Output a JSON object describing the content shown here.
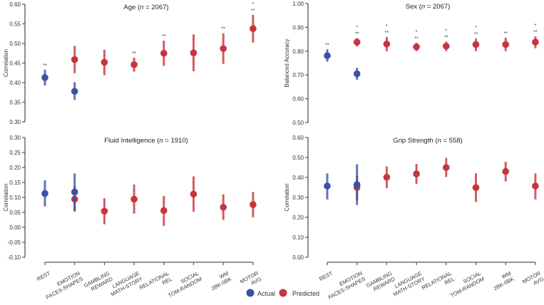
{
  "colors": {
    "actual": "#3953a4",
    "predicted": "#c6353d",
    "axis": "#555555"
  },
  "legend": {
    "actual": "Actual",
    "predicted": "Predicted"
  },
  "categories": [
    [
      "REST"
    ],
    [
      "EMOTION",
      "FACES-SHAPES"
    ],
    [
      "GAMBLING",
      "REWARD"
    ],
    [
      "LANGUAGE",
      "MATH-STORY"
    ],
    [
      "RELATIONAL",
      "REL"
    ],
    [
      "SOCIAL",
      "TOM-RANDOM"
    ],
    [
      "WM",
      "2BK-0BK"
    ],
    [
      "MOTOR",
      "AVG"
    ]
  ],
  "chart_data": [
    {
      "type": "scatter",
      "title_main": "Age (",
      "title_n": "n",
      "title_rest": " = 2067)",
      "ylabel": "Correlation",
      "ylim": [
        0.3,
        0.6
      ],
      "yticks": [
        "0.30",
        "0.35",
        "0.40",
        "0.45",
        "0.50",
        "0.55",
        "0.60"
      ],
      "actual": [
        {
          "cat": 0,
          "value": 0.413,
          "ci": [
            0.393,
            0.433
          ],
          "sig": [
            "**"
          ]
        },
        {
          "cat": 1,
          "value": 0.378,
          "ci": [
            0.356,
            0.401
          ],
          "sig": []
        }
      ],
      "predicted": [
        {
          "cat": 1,
          "value": 0.459,
          "ci": [
            0.424,
            0.494
          ],
          "sig": []
        },
        {
          "cat": 2,
          "value": 0.452,
          "ci": [
            0.419,
            0.484
          ],
          "sig": []
        },
        {
          "cat": 3,
          "value": 0.446,
          "ci": [
            0.428,
            0.464
          ],
          "sig": [
            "**"
          ]
        },
        {
          "cat": 4,
          "value": 0.475,
          "ci": [
            0.443,
            0.507
          ],
          "sig": [
            "**"
          ]
        },
        {
          "cat": 5,
          "value": 0.476,
          "ci": [
            0.429,
            0.523
          ],
          "sig": []
        },
        {
          "cat": 6,
          "value": 0.487,
          "ci": [
            0.448,
            0.526
          ],
          "sig": [
            "**"
          ]
        },
        {
          "cat": 7,
          "value": 0.538,
          "ci": [
            0.502,
            0.573
          ],
          "sig": [
            "*",
            "**"
          ]
        }
      ]
    },
    {
      "type": "scatter",
      "title_main": "Sex (",
      "title_n": "n",
      "title_rest": " = 2067)",
      "ylabel": "Balanced Accuracy",
      "ylim": [
        0.5,
        1.0
      ],
      "yticks": [
        "0.50",
        "0.60",
        "0.70",
        "0.80",
        "0.90",
        "1.00"
      ],
      "actual": [
        {
          "cat": 0,
          "value": 0.781,
          "ci": [
            0.756,
            0.808
          ],
          "sig": [
            "**"
          ]
        },
        {
          "cat": 1,
          "value": 0.705,
          "ci": [
            0.68,
            0.73
          ],
          "sig": []
        }
      ],
      "predicted": [
        {
          "cat": 1,
          "value": 0.838,
          "ci": [
            0.82,
            0.855
          ],
          "sig": [
            "*",
            "**"
          ]
        },
        {
          "cat": 2,
          "value": 0.83,
          "ci": [
            0.8,
            0.86
          ],
          "sig": [
            "*",
            "**"
          ]
        },
        {
          "cat": 3,
          "value": 0.818,
          "ci": [
            0.8,
            0.835
          ],
          "sig": [
            "*",
            "**"
          ]
        },
        {
          "cat": 4,
          "value": 0.821,
          "ci": [
            0.8,
            0.84
          ],
          "sig": [
            "*",
            "**"
          ]
        },
        {
          "cat": 5,
          "value": 0.828,
          "ci": [
            0.8,
            0.853
          ],
          "sig": [
            "*",
            "**"
          ]
        },
        {
          "cat": 6,
          "value": 0.828,
          "ci": [
            0.8,
            0.857
          ],
          "sig": [
            "**"
          ]
        },
        {
          "cat": 7,
          "value": 0.838,
          "ci": [
            0.812,
            0.862
          ],
          "sig": [
            "*",
            "**"
          ]
        }
      ]
    },
    {
      "type": "scatter",
      "title_main": "Fluid Intelligence (",
      "title_n": "n",
      "title_rest": " = 1910)",
      "ylabel": "Correlation",
      "ylim": [
        -0.1,
        0.3
      ],
      "yticks": [
        "-0.10",
        "-0.05",
        "0.00",
        "0.05",
        "0.10",
        "0.15",
        "0.20",
        "0.25",
        "0.30"
      ],
      "actual": [
        {
          "cat": 0,
          "value": 0.113,
          "ci": [
            0.07,
            0.157
          ],
          "sig": []
        },
        {
          "cat": 1,
          "value": 0.118,
          "ci": [
            0.055,
            0.18
          ],
          "sig": []
        }
      ],
      "predicted": [
        {
          "cat": 1,
          "value": 0.094,
          "ci": [
            0.052,
            0.137
          ],
          "sig": []
        },
        {
          "cat": 2,
          "value": 0.054,
          "ci": [
            0.01,
            0.097
          ],
          "sig": []
        },
        {
          "cat": 3,
          "value": 0.094,
          "ci": [
            0.046,
            0.143
          ],
          "sig": []
        },
        {
          "cat": 4,
          "value": 0.056,
          "ci": [
            0.005,
            0.105
          ],
          "sig": []
        },
        {
          "cat": 5,
          "value": 0.111,
          "ci": [
            0.052,
            0.17
          ],
          "sig": []
        },
        {
          "cat": 6,
          "value": 0.067,
          "ci": [
            0.025,
            0.11
          ],
          "sig": []
        },
        {
          "cat": 7,
          "value": 0.076,
          "ci": [
            0.034,
            0.118
          ],
          "sig": []
        }
      ]
    },
    {
      "type": "scatter",
      "title_main": "Grip Strength (",
      "title_n": "n",
      "title_rest": " = 558)",
      "ylabel": "Correlation",
      "ylim": [
        0.0,
        0.6
      ],
      "yticks": [
        "0.00",
        "0.10",
        "0.20",
        "0.30",
        "0.40",
        "0.50",
        "0.60"
      ],
      "actual": [
        {
          "cat": 0,
          "value": 0.357,
          "ci": [
            0.29,
            0.42
          ],
          "sig": []
        },
        {
          "cat": 1,
          "value": 0.364,
          "ci": [
            0.262,
            0.466
          ],
          "sig": []
        }
      ],
      "predicted": [
        {
          "cat": 1,
          "value": 0.35,
          "ci": [
            0.285,
            0.41
          ],
          "sig": []
        },
        {
          "cat": 2,
          "value": 0.401,
          "ci": [
            0.346,
            0.455
          ],
          "sig": []
        },
        {
          "cat": 3,
          "value": 0.418,
          "ci": [
            0.367,
            0.468
          ],
          "sig": []
        },
        {
          "cat": 4,
          "value": 0.45,
          "ci": [
            0.402,
            0.498
          ],
          "sig": []
        },
        {
          "cat": 5,
          "value": 0.349,
          "ci": [
            0.277,
            0.42
          ],
          "sig": []
        },
        {
          "cat": 6,
          "value": 0.43,
          "ci": [
            0.38,
            0.478
          ],
          "sig": []
        },
        {
          "cat": 7,
          "value": 0.357,
          "ci": [
            0.29,
            0.42
          ],
          "sig": []
        }
      ]
    }
  ]
}
